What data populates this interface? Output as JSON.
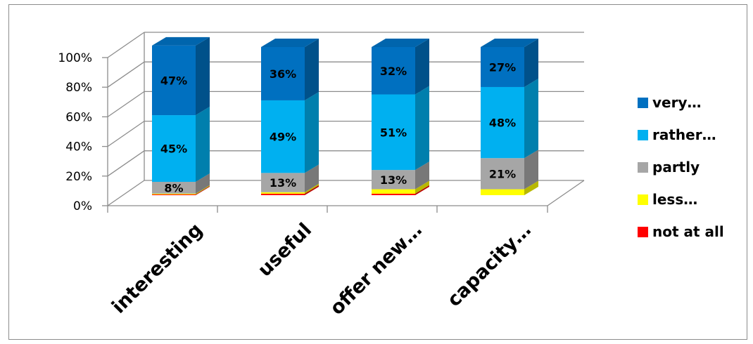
{
  "chart_data": {
    "type": "bar",
    "stacked": true,
    "percent_stacked": true,
    "three_d": true,
    "categories": [
      "interesting",
      "useful",
      "offer new…",
      "capacity…"
    ],
    "series": [
      {
        "name": "not at all",
        "color": "#ff0000",
        "values": [
          0.5,
          1,
          1,
          0
        ]
      },
      {
        "name": "less…",
        "color": "#ffff00",
        "values": [
          0.5,
          1,
          3,
          4
        ]
      },
      {
        "name": "partly",
        "color": "#a6a6a6",
        "values": [
          8,
          13,
          13,
          21
        ]
      },
      {
        "name": "rather…",
        "color": "#00b0f0",
        "values": [
          45,
          49,
          51,
          48
        ]
      },
      {
        "name": "very…",
        "color": "#0070c0",
        "values": [
          47,
          36,
          32,
          27
        ]
      }
    ],
    "data_labels": {
      "partly": [
        "8%",
        "13%",
        "13%",
        "21%"
      ],
      "rather…": [
        "45%",
        "49%",
        "51%",
        "48%"
      ],
      "very…": [
        "47%",
        "36%",
        "32%",
        "27%"
      ]
    },
    "yticks": [
      "0%",
      "20%",
      "40%",
      "60%",
      "80%",
      "100%"
    ],
    "ylim": [
      0,
      100
    ],
    "grid": true,
    "legend_position": "right",
    "legend_order": [
      "very…",
      "rather…",
      "partly",
      "less…",
      "not at all"
    ]
  }
}
